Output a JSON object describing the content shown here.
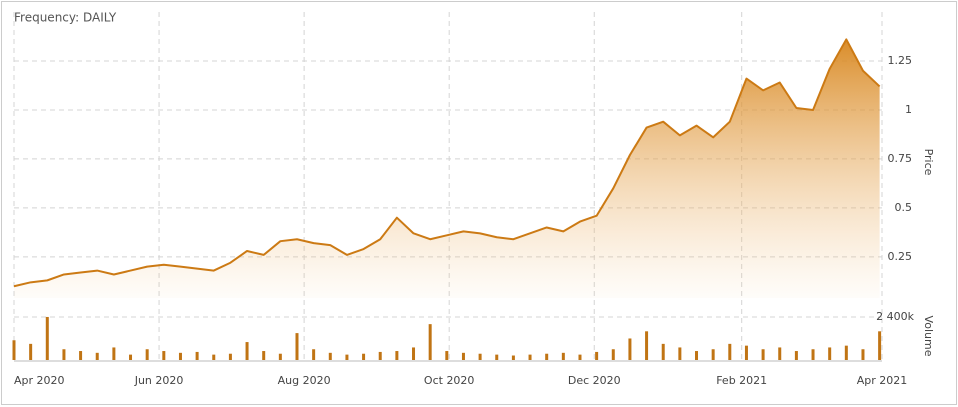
{
  "chart_data": {
    "type": "area",
    "title": "Frequency: DAILY",
    "x": [
      "2020-04-01",
      "2020-04-08",
      "2020-04-15",
      "2020-04-22",
      "2020-04-29",
      "2020-05-06",
      "2020-05-13",
      "2020-05-20",
      "2020-05-27",
      "2020-06-03",
      "2020-06-10",
      "2020-06-17",
      "2020-06-24",
      "2020-07-01",
      "2020-07-08",
      "2020-07-15",
      "2020-07-22",
      "2020-07-29",
      "2020-08-05",
      "2020-08-12",
      "2020-08-19",
      "2020-08-26",
      "2020-09-02",
      "2020-09-09",
      "2020-09-16",
      "2020-09-23",
      "2020-09-30",
      "2020-10-07",
      "2020-10-14",
      "2020-10-21",
      "2020-10-28",
      "2020-11-04",
      "2020-11-11",
      "2020-11-18",
      "2020-11-25",
      "2020-12-02",
      "2020-12-09",
      "2020-12-16",
      "2020-12-23",
      "2020-12-30",
      "2021-01-06",
      "2021-01-13",
      "2021-01-20",
      "2021-01-27",
      "2021-02-03",
      "2021-02-10",
      "2021-02-17",
      "2021-02-24",
      "2021-03-03",
      "2021-03-10",
      "2021-03-17",
      "2021-03-24",
      "2021-03-31"
    ],
    "series": [
      {
        "name": "Price",
        "color": "#cc7a14",
        "values": [
          0.1,
          0.12,
          0.13,
          0.16,
          0.17,
          0.18,
          0.16,
          0.18,
          0.2,
          0.21,
          0.2,
          0.19,
          0.18,
          0.22,
          0.28,
          0.26,
          0.33,
          0.34,
          0.32,
          0.31,
          0.26,
          0.29,
          0.34,
          0.45,
          0.37,
          0.34,
          0.36,
          0.38,
          0.37,
          0.35,
          0.34,
          0.37,
          0.4,
          0.38,
          0.43,
          0.46,
          0.6,
          0.77,
          0.91,
          0.94,
          0.87,
          0.92,
          0.86,
          0.94,
          1.16,
          1.1,
          1.14,
          1.01,
          1.0,
          1.21,
          1.36,
          1.2,
          1.12
        ]
      },
      {
        "name": "Volume",
        "color": "#c07414",
        "axis": "y2",
        "values": [
          1100000,
          900000,
          2400000,
          600000,
          500000,
          400000,
          700000,
          300000,
          600000,
          500000,
          400000,
          450000,
          300000,
          350000,
          1000000,
          500000,
          350000,
          1500000,
          600000,
          400000,
          300000,
          350000,
          450000,
          500000,
          700000,
          2000000,
          500000,
          400000,
          350000,
          300000,
          250000,
          300000,
          350000,
          400000,
          300000,
          450000,
          600000,
          1200000,
          1600000,
          900000,
          700000,
          500000,
          600000,
          900000,
          800000,
          600000,
          700000,
          500000,
          600000,
          700000,
          800000,
          600000,
          1600000
        ]
      }
    ],
    "xlim": [
      "2020-04-01",
      "2021-04-01"
    ],
    "xticks": [
      {
        "value": "2020-04-01",
        "label": "Apr 2020"
      },
      {
        "value": "2020-06-01",
        "label": "Jun 2020"
      },
      {
        "value": "2020-08-01",
        "label": "Aug 2020"
      },
      {
        "value": "2020-10-01",
        "label": "Oct 2020"
      },
      {
        "value": "2020-12-01",
        "label": "Dec 2020"
      },
      {
        "value": "2021-02-01",
        "label": "Feb 2021"
      },
      {
        "value": "2021-04-01",
        "label": "Apr 2021"
      }
    ],
    "ylim": [
      0.04,
      1.5
    ],
    "yticks": [
      0.25,
      0.5,
      0.75,
      1,
      1.25
    ],
    "y2lim": [
      0,
      2900000
    ],
    "y2ticks": [
      {
        "value": 2400000,
        "label": "2 400k"
      }
    ],
    "grid": true
  }
}
